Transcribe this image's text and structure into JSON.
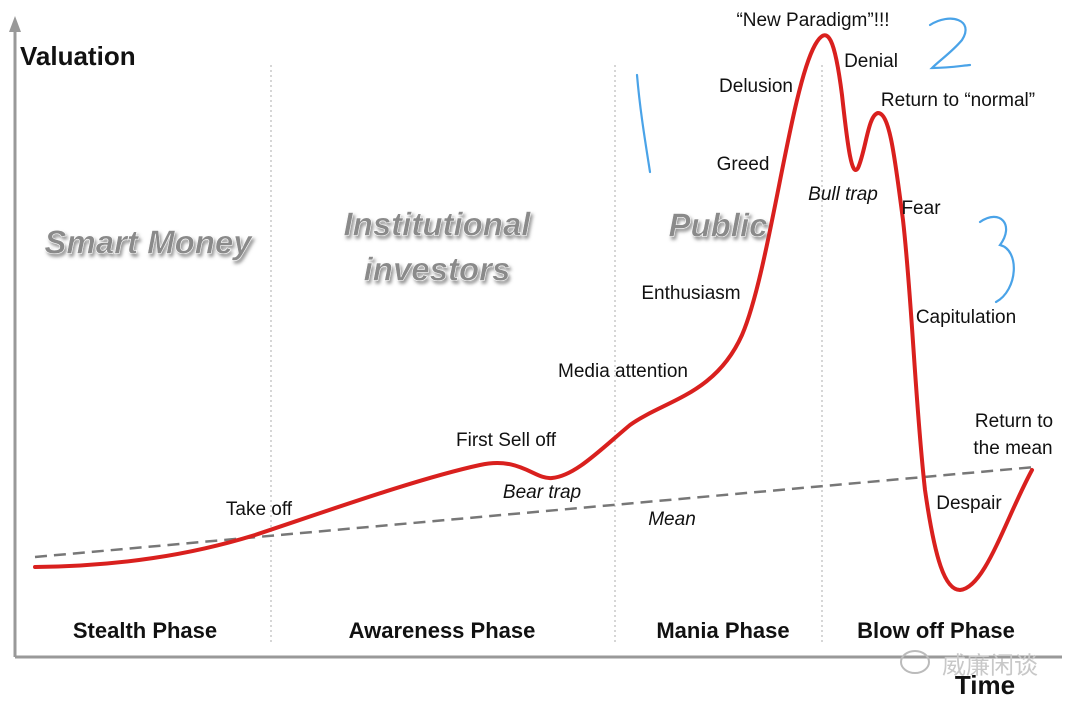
{
  "axes": {
    "y_label": "Valuation",
    "x_label": "Time"
  },
  "audience_labels": [
    [
      "Smart Money"
    ],
    [
      "Institutional",
      "investors"
    ],
    [
      "Public"
    ]
  ],
  "annotations": [
    {
      "text": "Take off",
      "italic": false
    },
    {
      "text": "First Sell off",
      "italic": false
    },
    {
      "text": "Bear trap",
      "italic": true
    },
    {
      "text": "Media attention",
      "italic": false
    },
    {
      "text": "Mean",
      "italic": true
    },
    {
      "text": "Enthusiasm",
      "italic": false
    },
    {
      "text": "Greed",
      "italic": false
    },
    {
      "text": "Delusion",
      "italic": false
    },
    {
      "text": "“New Paradigm”!!!",
      "italic": false
    },
    {
      "text": "Denial",
      "italic": false
    },
    {
      "text": "Return to “normal”",
      "italic": false
    },
    {
      "text": "Bull trap",
      "italic": true
    },
    {
      "text": "Fear",
      "italic": false
    },
    {
      "text": "Capitulation",
      "italic": false
    },
    {
      "text": "Return to",
      "italic": false
    },
    {
      "text": "the mean",
      "italic": false
    },
    {
      "text": "Despair",
      "italic": false
    }
  ],
  "phases": [
    "Stealth Phase",
    "Awareness Phase",
    "Mania Phase",
    "Blow off Phase"
  ],
  "watermark": "威廉闲谈"
}
